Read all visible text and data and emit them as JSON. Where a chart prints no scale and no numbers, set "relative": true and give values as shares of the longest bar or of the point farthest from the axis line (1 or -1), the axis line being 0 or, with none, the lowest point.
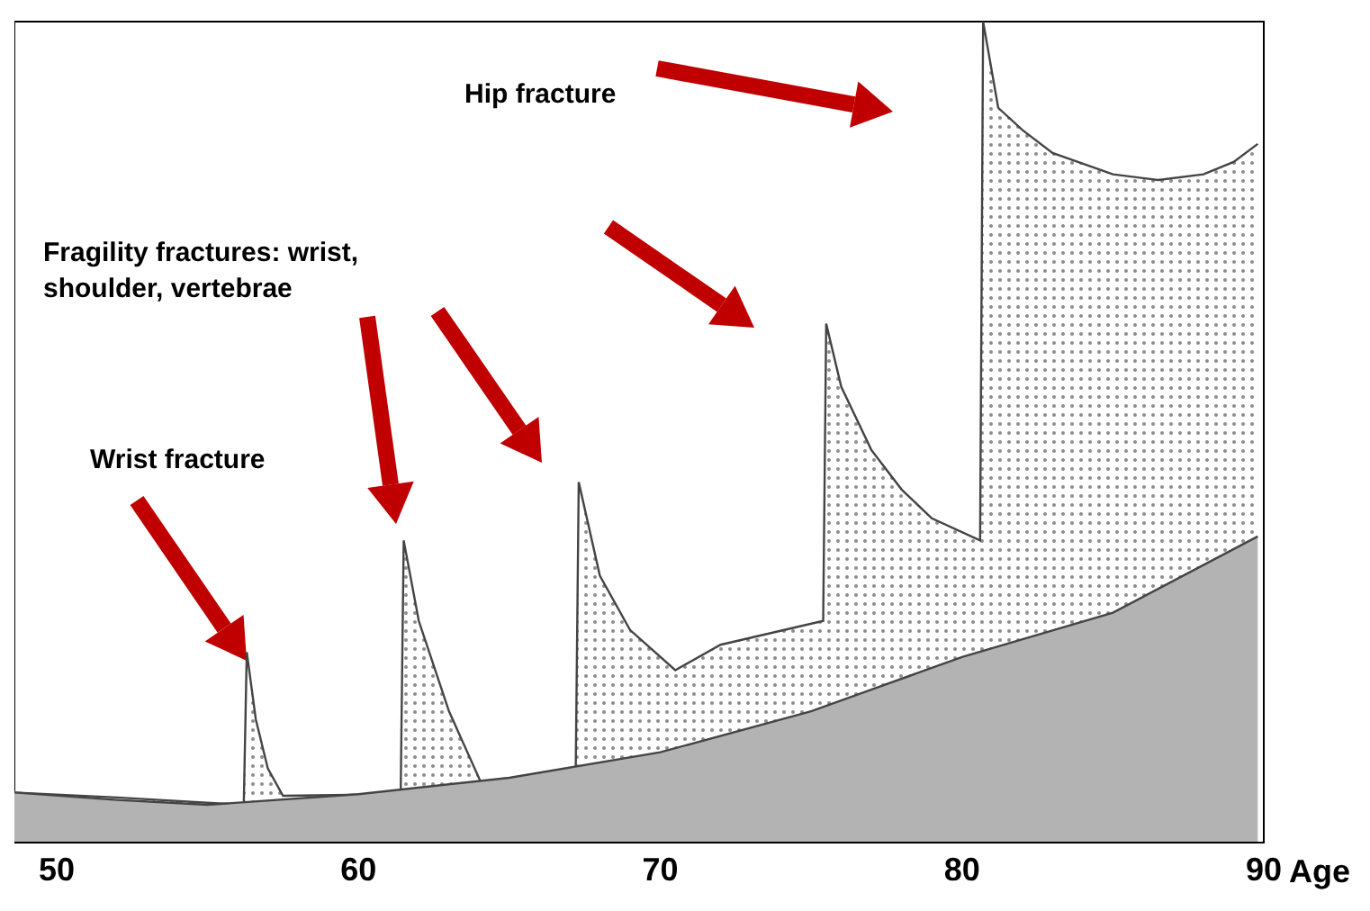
{
  "chart_data": {
    "type": "area",
    "relative": true,
    "xlabel": "Age",
    "xlim": [
      48.6,
      90
    ],
    "xticks": [
      50,
      60,
      70,
      80,
      90
    ],
    "annotations": [
      "Wrist fracture",
      "Fragility fractures: wrist, shoulder, vertebrae",
      "Hip fracture"
    ],
    "series": [
      {
        "color": "#8c8c8c",
        "x": [
          48.6,
          52,
          56.2,
          56.3,
          56.6,
          57,
          57.5,
          61.4,
          61.5,
          62,
          63,
          64.1,
          67.2,
          67.3,
          68,
          69,
          70.5,
          72,
          75.4,
          75.5,
          76,
          77,
          78,
          79,
          80.6,
          80.7,
          81.2,
          82,
          83,
          85,
          86.5,
          88,
          89,
          89.8
        ],
        "values": [
          0.061,
          0.055,
          0.046,
          0.232,
          0.15,
          0.09,
          0.057,
          0.059,
          0.368,
          0.27,
          0.16,
          0.07,
          0.088,
          0.439,
          0.325,
          0.259,
          0.21,
          0.241,
          0.27,
          0.632,
          0.555,
          0.478,
          0.43,
          0.395,
          0.368,
          1.0,
          0.895,
          0.868,
          0.84,
          0.814,
          0.807,
          0.814,
          0.829,
          0.851
        ]
      },
      {
        "color": "#b3b3b3",
        "x": [
          48.6,
          52,
          55,
          60,
          65,
          70,
          75,
          80,
          85,
          89.8
        ],
        "values": [
          0.061,
          0.052,
          0.046,
          0.059,
          0.079,
          0.11,
          0.16,
          0.226,
          0.28,
          0.373
        ]
      }
    ]
  }
}
